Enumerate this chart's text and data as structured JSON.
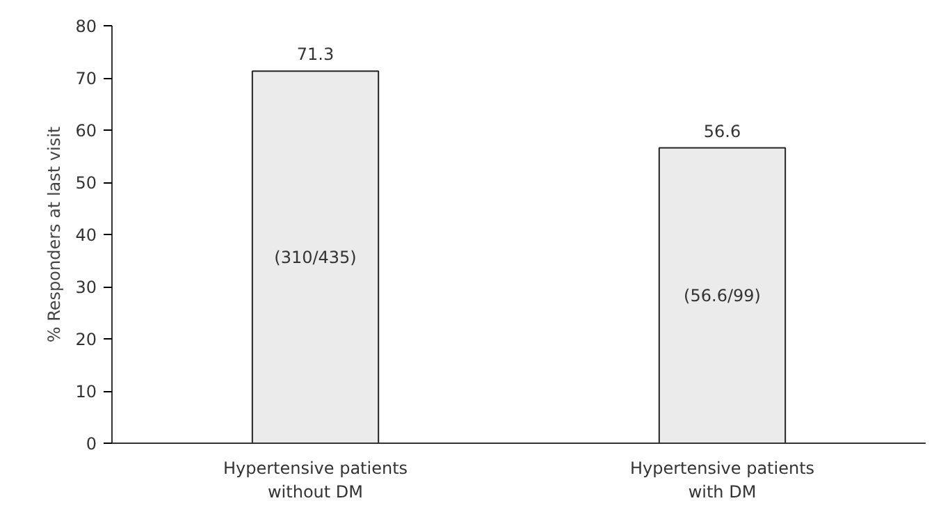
{
  "chart_data": {
    "type": "bar",
    "ylabel": "% Responders at last visit",
    "categories": [
      "Hypertensive patients\nwithout DM",
      "Hypertensive patients\nwith DM"
    ],
    "values": [
      71.3,
      56.6
    ],
    "color": "#ebebeb",
    "data_labels": true,
    "ylim": [
      0,
      80
    ],
    "yticks": [
      0,
      10,
      20,
      30,
      40,
      50,
      60,
      70,
      80
    ],
    "grid": false,
    "annotations": [
      "(310/435)",
      "(56.6/99)"
    ]
  }
}
